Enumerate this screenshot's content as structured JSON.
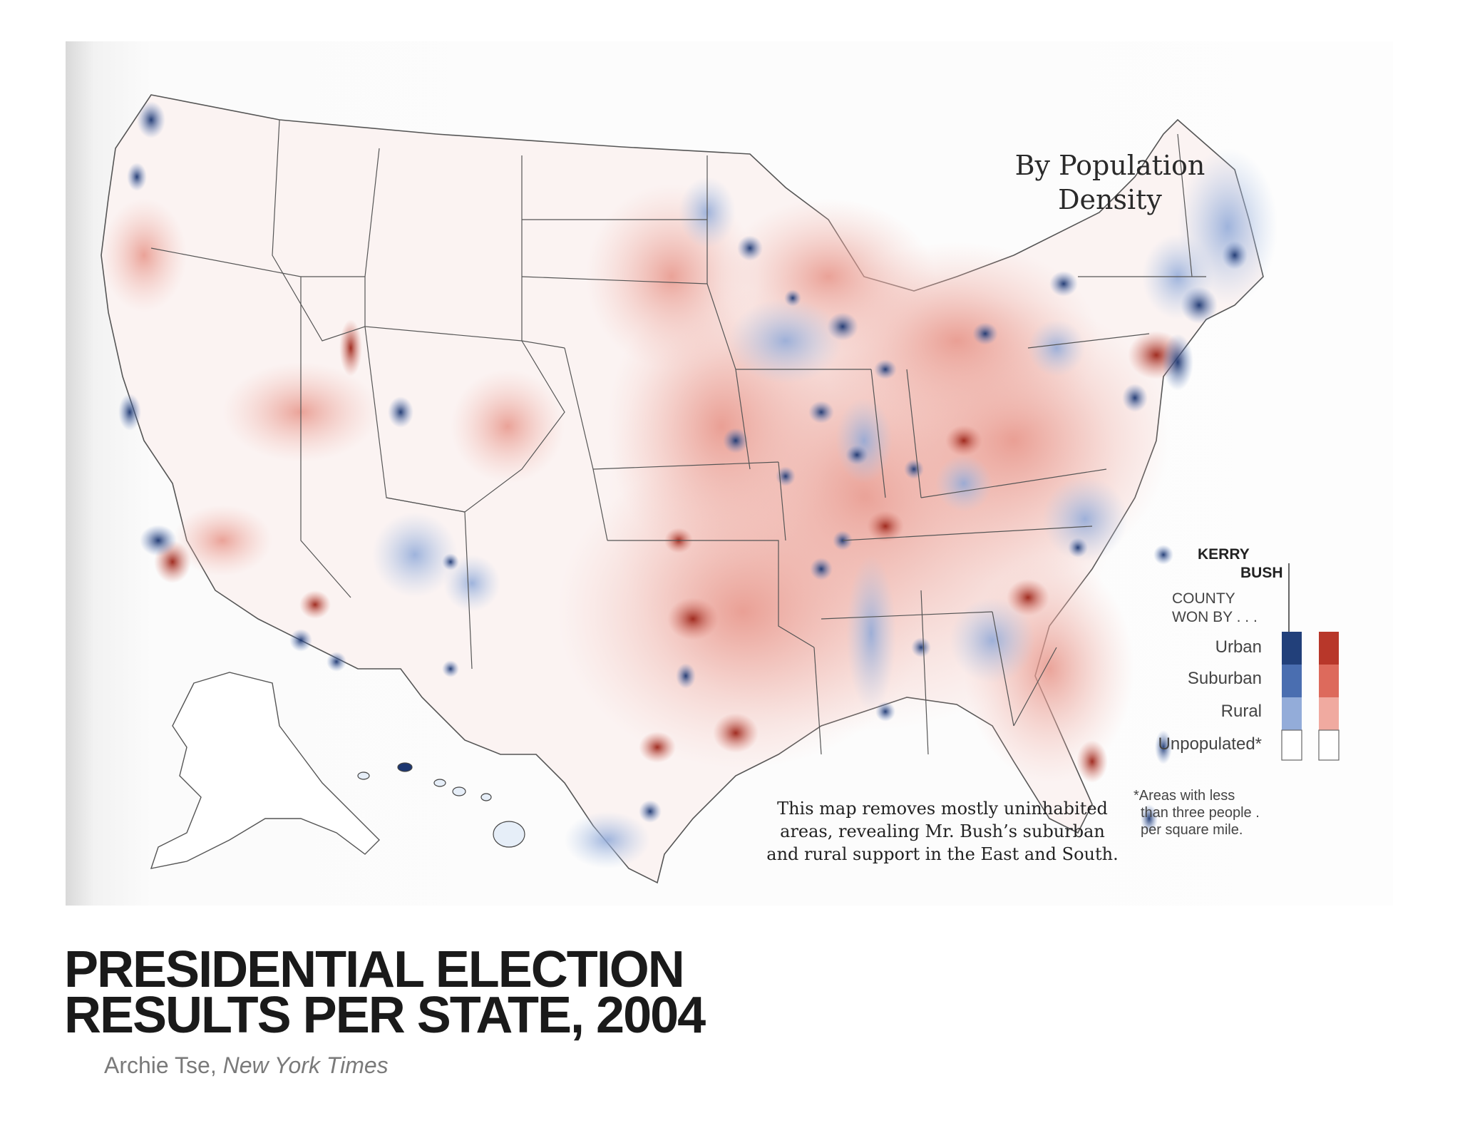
{
  "map": {
    "title_line1": "By Population",
    "title_line2": "Density",
    "caption_line1": "This map removes mostly uninhabited",
    "caption_line2": "areas, revealing Mr. Bush’s suburban",
    "caption_line3": "and rural support in the East and South."
  },
  "legend": {
    "heading_line1": "COUNTY",
    "heading_line2": "WON BY . . .",
    "kerry_label": "KERRY",
    "bush_label": "BUSH",
    "rows": [
      {
        "label": "Urban",
        "kerry_color": "#22407a",
        "bush_color": "#b8372a"
      },
      {
        "label": "Suburban",
        "kerry_color": "#4a6eb0",
        "bush_color": "#dd6a5c"
      },
      {
        "label": "Rural",
        "kerry_color": "#93acd9",
        "bush_color": "#f0aaa0"
      },
      {
        "label": "Unpopulated*",
        "kerry_color": "#ffffff",
        "bush_color": "#ffffff"
      }
    ],
    "note_line1": "*Areas with less",
    "note_line2": "than three people .",
    "note_line3": "per square mile."
  },
  "page": {
    "title_line1": "PRESIDENTIAL ELECTION",
    "title_line2": "RESULTS PER STATE, 2004",
    "credit_author": "Archie Tse,",
    "credit_source": "New York Times"
  },
  "colors": {
    "kerry_dark": "#22407a",
    "bush_dark": "#b8372a",
    "bush_light": "#f0aaa0",
    "kerry_light": "#93acd9"
  }
}
